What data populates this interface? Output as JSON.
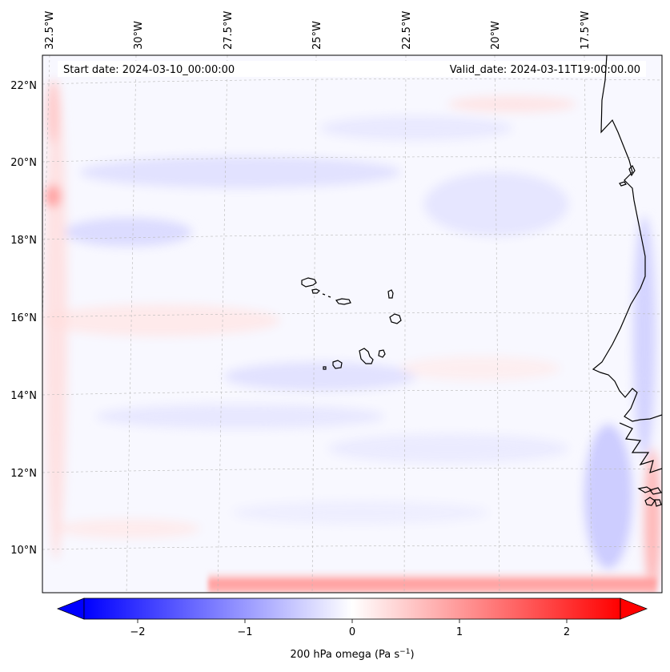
{
  "map": {
    "start_date": "Start date: 2024-03-10_00:00:00",
    "valid_date": "Valid_date: 2024-03-11T19:00:00.00",
    "lon_labels": [
      "32.5°W",
      "30°W",
      "27.5°W",
      "25°W",
      "22.5°W",
      "20°W",
      "17.5°W"
    ],
    "lat_labels": [
      "22°N",
      "20°N",
      "18°N",
      "16°N",
      "14°N",
      "12°N",
      "10°N"
    ],
    "islands": [
      "Cape Verde islands"
    ],
    "coastline": "West African coast"
  },
  "colorbar": {
    "label": "200 hPa omega (Pa s",
    "label_sup": "−1",
    "label_close": ")",
    "ticks": [
      "−2",
      "−1",
      "0",
      "1",
      "2"
    ],
    "tick_values": [
      -2,
      -1,
      0,
      1,
      2
    ],
    "range": [
      -2.5,
      2.5
    ],
    "cmap": "bwr",
    "low_color": "#0000ff",
    "mid_color": "#ffffff",
    "high_color": "#ff0000"
  }
}
